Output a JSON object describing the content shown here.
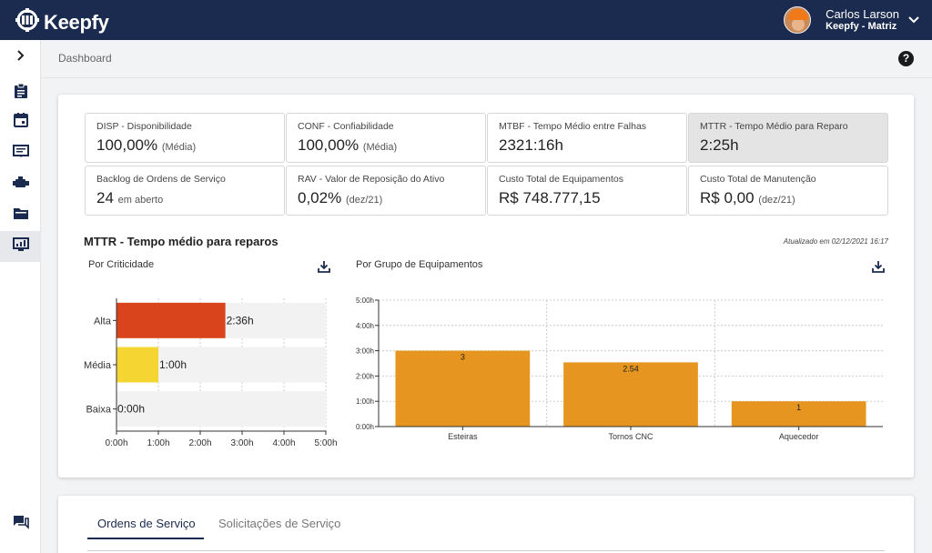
{
  "app": {
    "name": "Keepfy"
  },
  "user": {
    "name": "Carlos Larson",
    "org": "Keepfy - Matriz"
  },
  "breadcrumb": "Dashboard",
  "help_label": "?",
  "kpis": [
    {
      "label": "DISP - Disponibilidade",
      "value": "100,00%",
      "suffix": "(Média)"
    },
    {
      "label": "CONF - Confiabilidade",
      "value": "100,00%",
      "suffix": "(Média)"
    },
    {
      "label": "MTBF - Tempo Médio entre Falhas",
      "value": "2321:16h",
      "suffix": ""
    },
    {
      "label": "MTTR - Tempo Médio para Reparo",
      "value": "2:25h",
      "suffix": ""
    },
    {
      "label": "Backlog de Ordens de Serviço",
      "value": "24",
      "suffix": "em aberto"
    },
    {
      "label": "RAV - Valor de Reposição do Ativo",
      "value": "0,02%",
      "suffix": "(dez/21)"
    },
    {
      "label": "Custo Total de Equipamentos",
      "value": "R$ 748.777,15",
      "suffix": ""
    },
    {
      "label": "Custo Total de Manutenção",
      "value": "R$ 0,00",
      "suffix": "(dez/21)"
    }
  ],
  "section": {
    "title": "MTTR - Tempo médio para reparos",
    "updated": "Atualizado em 02/12/2021 16:17"
  },
  "colors": {
    "topbar": "#1b2b4f",
    "alta": "#d9441c",
    "media": "#f5d531",
    "grupo": "#e69620"
  },
  "icons": [
    "expand-icon",
    "clipboard-icon",
    "calendar-icon",
    "ticket-icon",
    "engine-icon",
    "folder-icon",
    "monitor-icon",
    "chat-icon",
    "download-icon"
  ],
  "chart_data": [
    {
      "type": "bar",
      "orientation": "horizontal",
      "title": "Por Criticidade",
      "categories": [
        "Alta",
        "Média",
        "Baixa"
      ],
      "values": [
        2.6,
        1.0,
        0.0
      ],
      "value_labels": [
        "2:36h",
        "1:00h",
        "0:00h"
      ],
      "xticks": [
        "0:00h",
        "1:00h",
        "2:00h",
        "3:00h",
        "4:00h",
        "5:00h"
      ],
      "xlim": [
        0,
        5
      ],
      "bar_colors": [
        "#d9441c",
        "#f5d531",
        "#f5d531"
      ],
      "grid": true
    },
    {
      "type": "bar",
      "title": "Por Grupo de Equipamentos",
      "categories": [
        "Esteiras",
        "Tornos CNC",
        "Aquecedor"
      ],
      "values": [
        3,
        2.54,
        1
      ],
      "value_labels": [
        "3",
        "2.54",
        "1"
      ],
      "yticks": [
        "0:00h",
        "1:00h",
        "2:00h",
        "3:00h",
        "4:00h",
        "5:00h"
      ],
      "ylim": [
        0,
        5
      ],
      "bar_color": "#e69620",
      "grid": true
    }
  ],
  "tabs": [
    {
      "label": "Ordens de Serviço",
      "active": true
    },
    {
      "label": "Solicitações de Serviço",
      "active": false
    }
  ]
}
